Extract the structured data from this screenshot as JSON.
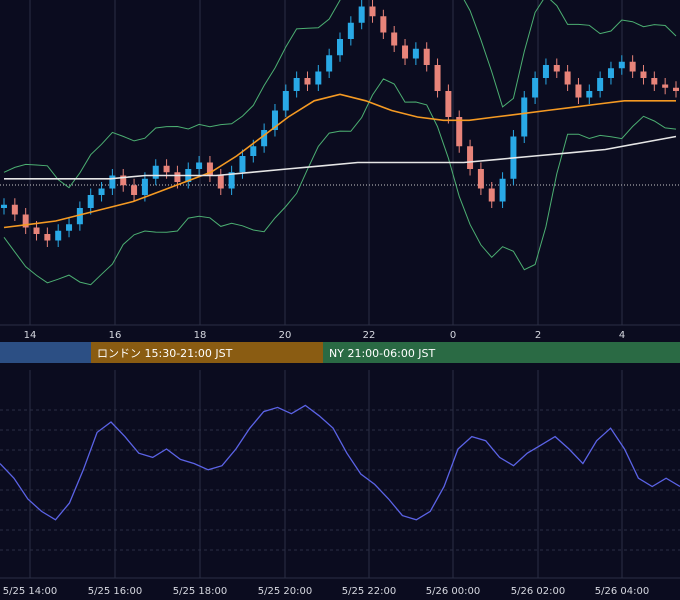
{
  "colors": {
    "background": "#0b0c1f",
    "grid": "#2b2e44",
    "candle_up": "#29a9e6",
    "candle_down": "#e8847a",
    "ma_short": "#f59a23",
    "ma_long": "#e6e6e6",
    "bollinger": "#4caf72",
    "oscillator": "#5b63e6",
    "session_tokyo": "#2c4f84",
    "session_london": "#8a5c12",
    "session_ny": "#2a6a44"
  },
  "sessions": [
    {
      "label": "",
      "color": "#2c4f84"
    },
    {
      "label": "ロンドン 15:30-21:00 JST",
      "color": "#8a5c12"
    },
    {
      "label": "NY 21:00-06:00 JST",
      "color": "#2a6a44"
    }
  ],
  "chart_data": [
    {
      "type": "candlestick",
      "x_labels": [
        "14",
        "16",
        "18",
        "20",
        "22",
        "0",
        "2",
        "4"
      ],
      "grid": true,
      "series": [
        {
          "type": "candlestick",
          "values": [
            0.37,
            0.34,
            0.3,
            0.28,
            0.26,
            0.29,
            0.31,
            0.36,
            0.4,
            0.42,
            0.46,
            0.43,
            0.4,
            0.45,
            0.49,
            0.47,
            0.44,
            0.48,
            0.5,
            0.46,
            0.42,
            0.47,
            0.52,
            0.55,
            0.6,
            0.66,
            0.72,
            0.76,
            0.74,
            0.78,
            0.83,
            0.88,
            0.93,
            0.98,
            0.95,
            0.9,
            0.86,
            0.82,
            0.85,
            0.8,
            0.72,
            0.64,
            0.55,
            0.48,
            0.42,
            0.38,
            0.45,
            0.58,
            0.7,
            0.76,
            0.8,
            0.78,
            0.74,
            0.7,
            0.72,
            0.76,
            0.79,
            0.81,
            0.78,
            0.76,
            0.74,
            0.73,
            0.72
          ]
        },
        {
          "type": "line",
          "name": "",
          "values": [
            0.3,
            0.31,
            0.32,
            0.34,
            0.36,
            0.38,
            0.41,
            0.44,
            0.47,
            0.52,
            0.58,
            0.64,
            0.69,
            0.71,
            0.69,
            0.66,
            0.64,
            0.63,
            0.63,
            0.64,
            0.65,
            0.66,
            0.67,
            0.68,
            0.69,
            0.69,
            0.69
          ]
        },
        {
          "type": "line",
          "name": "",
          "values": [
            0.45,
            0.45,
            0.45,
            0.45,
            0.46,
            0.46,
            0.46,
            0.47,
            0.48,
            0.49,
            0.5,
            0.5,
            0.5,
            0.5,
            0.51,
            0.52,
            0.53,
            0.54,
            0.56,
            0.58
          ]
        }
      ]
    },
    {
      "type": "line",
      "x_labels": [
        "5/25 14:00",
        "5/25 16:00",
        "5/25 18:00",
        "5/25 20:00",
        "5/25 22:00",
        "5/26 00:00",
        "5/26 02:00",
        "5/26 04:00"
      ],
      "grid": true,
      "series": [
        {
          "name": "",
          "values": [
            0.55,
            0.48,
            0.38,
            0.32,
            0.28,
            0.36,
            0.52,
            0.7,
            0.75,
            0.68,
            0.6,
            0.58,
            0.62,
            0.57,
            0.55,
            0.52,
            0.54,
            0.62,
            0.72,
            0.8,
            0.82,
            0.79,
            0.83,
            0.78,
            0.72,
            0.6,
            0.5,
            0.45,
            0.38,
            0.3,
            0.28,
            0.32,
            0.44,
            0.62,
            0.68,
            0.66,
            0.58,
            0.54,
            0.6,
            0.64,
            0.68,
            0.62,
            0.55,
            0.66,
            0.72,
            0.62,
            0.48,
            0.44,
            0.48,
            0.44
          ]
        }
      ]
    }
  ]
}
